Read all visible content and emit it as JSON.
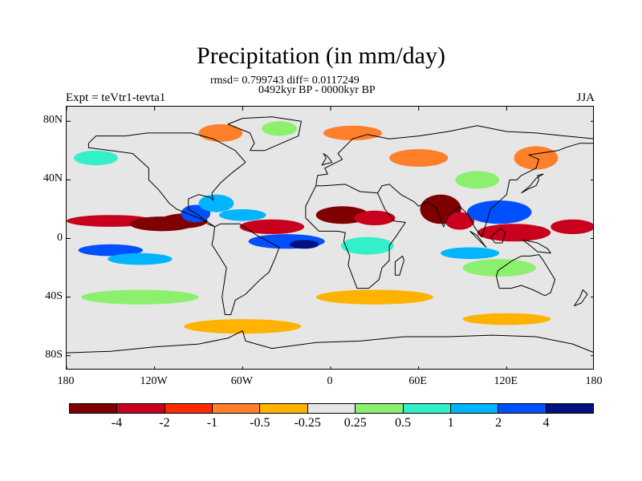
{
  "title": "Precipitation (in mm/day)",
  "stats": "rmsd= 0.799743 diff= 0.0117249",
  "period": "0492kyr BP - 0000kyr BP",
  "expt": "Expt = teVtr1-tevta1",
  "season": "JJA",
  "map": {
    "lon_range": [
      -180,
      180
    ],
    "lat_range": [
      -90,
      90
    ],
    "background": "#e6e6e6",
    "lat_ticks": [
      {
        "label": "80N",
        "lat": 80
      },
      {
        "label": "40N",
        "lat": 40
      },
      {
        "label": "0",
        "lat": 0
      },
      {
        "label": "40S",
        "lat": -40
      },
      {
        "label": "80S",
        "lat": -80
      }
    ],
    "lon_ticks": [
      {
        "label": "180",
        "lon": -180
      },
      {
        "label": "120W",
        "lon": -120
      },
      {
        "label": "60W",
        "lon": -60
      },
      {
        "label": "0",
        "lon": 0
      },
      {
        "label": "60E",
        "lon": 60
      },
      {
        "label": "120E",
        "lon": 120
      },
      {
        "label": "180",
        "lon": 180
      }
    ]
  },
  "colorbar": {
    "colors": [
      "#7f0000",
      "#c8001e",
      "#ff2a00",
      "#ff7f2a",
      "#ffb300",
      "#e6e6e6",
      "#8cf06e",
      "#33f0c8",
      "#00b4ff",
      "#0050ff",
      "#001080"
    ],
    "labels": [
      "-4",
      "-2",
      "-1",
      "-0.5",
      "-0.25",
      "0.25",
      "0.5",
      "1",
      "2",
      "4"
    ]
  },
  "blobs": [
    {
      "lon": -150,
      "lat": 12,
      "rx": 30,
      "ry": 4,
      "level": 1
    },
    {
      "lon": -115,
      "lat": 10,
      "rx": 22,
      "ry": 5,
      "level": 0
    },
    {
      "lon": -100,
      "lat": 12,
      "rx": 16,
      "ry": 5,
      "level": 0
    },
    {
      "lon": -92,
      "lat": 17,
      "rx": 10,
      "ry": 6,
      "level": 9
    },
    {
      "lon": -78,
      "lat": 24,
      "rx": 12,
      "ry": 6,
      "level": 8
    },
    {
      "lon": -60,
      "lat": 16,
      "rx": 16,
      "ry": 4,
      "level": 8
    },
    {
      "lon": -40,
      "lat": 8,
      "rx": 22,
      "ry": 5,
      "level": 1
    },
    {
      "lon": -30,
      "lat": -2,
      "rx": 26,
      "ry": 5,
      "level": 9
    },
    {
      "lon": -18,
      "lat": -4,
      "rx": 10,
      "ry": 3,
      "level": 10
    },
    {
      "lon": -150,
      "lat": -8,
      "rx": 22,
      "ry": 4,
      "level": 9
    },
    {
      "lon": -130,
      "lat": -14,
      "rx": 22,
      "ry": 4,
      "level": 8
    },
    {
      "lon": 8,
      "lat": 16,
      "rx": 18,
      "ry": 6,
      "level": 0
    },
    {
      "lon": 30,
      "lat": 14,
      "rx": 14,
      "ry": 5,
      "level": 1
    },
    {
      "lon": 25,
      "lat": -5,
      "rx": 18,
      "ry": 6,
      "level": 7
    },
    {
      "lon": 75,
      "lat": 20,
      "rx": 14,
      "ry": 10,
      "level": 0
    },
    {
      "lon": 88,
      "lat": 12,
      "rx": 10,
      "ry": 6,
      "level": 1
    },
    {
      "lon": 115,
      "lat": 18,
      "rx": 22,
      "ry": 8,
      "level": 9
    },
    {
      "lon": 125,
      "lat": 4,
      "rx": 25,
      "ry": 6,
      "level": 1
    },
    {
      "lon": 165,
      "lat": 8,
      "rx": 15,
      "ry": 5,
      "level": 1
    },
    {
      "lon": 95,
      "lat": -10,
      "rx": 20,
      "ry": 4,
      "level": 8
    },
    {
      "lon": 115,
      "lat": -20,
      "rx": 25,
      "ry": 6,
      "level": 6
    },
    {
      "lon": 140,
      "lat": 55,
      "rx": 15,
      "ry": 8,
      "level": 3
    },
    {
      "lon": -75,
      "lat": 72,
      "rx": 15,
      "ry": 6,
      "level": 3
    },
    {
      "lon": -35,
      "lat": 75,
      "rx": 12,
      "ry": 5,
      "level": 6
    },
    {
      "lon": 15,
      "lat": 72,
      "rx": 20,
      "ry": 5,
      "level": 3
    },
    {
      "lon": 60,
      "lat": 55,
      "rx": 20,
      "ry": 6,
      "level": 3
    },
    {
      "lon": -160,
      "lat": 55,
      "rx": 15,
      "ry": 5,
      "level": 7
    },
    {
      "lon": -130,
      "lat": -40,
      "rx": 40,
      "ry": 5,
      "level": 6
    },
    {
      "lon": 30,
      "lat": -40,
      "rx": 40,
      "ry": 5,
      "level": 4
    },
    {
      "lon": -60,
      "lat": -60,
      "rx": 40,
      "ry": 5,
      "level": 4
    },
    {
      "lon": 120,
      "lat": -55,
      "rx": 30,
      "ry": 4,
      "level": 4
    },
    {
      "lon": 100,
      "lat": 40,
      "rx": 15,
      "ry": 6,
      "level": 6
    }
  ]
}
